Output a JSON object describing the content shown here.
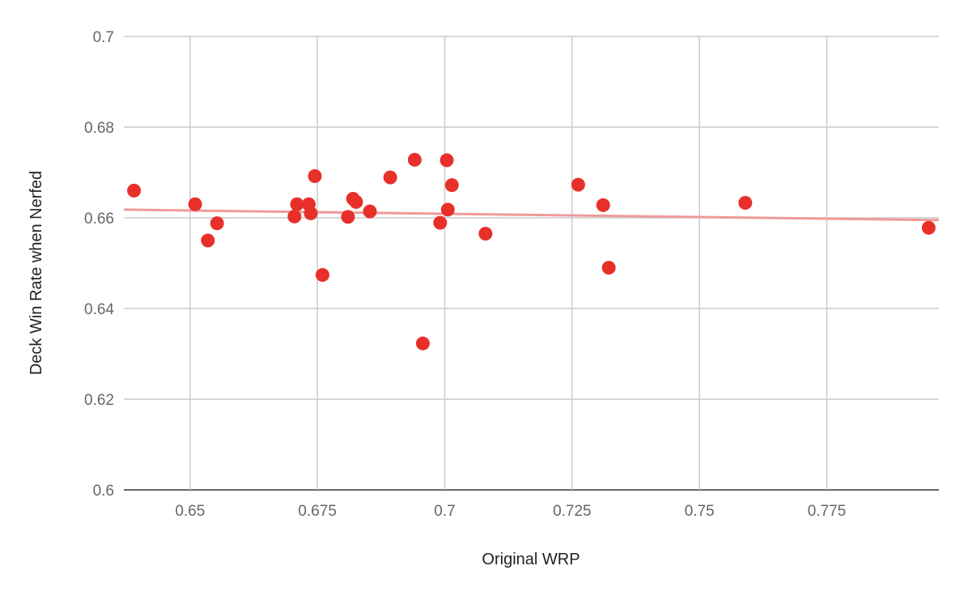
{
  "chart_data": {
    "type": "scatter",
    "title": "",
    "xlabel": "Original WRP",
    "ylabel": "Deck Win Rate when Nerfed",
    "xlim": [
      0.637,
      0.797
    ],
    "ylim": [
      0.6,
      0.7
    ],
    "x_ticks": [
      0.65,
      0.675,
      0.7,
      0.725,
      0.75,
      0.775
    ],
    "x_tick_labels": [
      "0.65",
      "0.675",
      "0.7",
      "0.725",
      "0.75",
      "0.775"
    ],
    "y_ticks": [
      0.6,
      0.62,
      0.64,
      0.66,
      0.68,
      0.7
    ],
    "y_tick_labels": [
      "0.6",
      "0.62",
      "0.64",
      "0.66",
      "0.68",
      "0.7"
    ],
    "grid": true,
    "legend": "none",
    "colors": {
      "points": "#e8302a",
      "trendline": "#ef9a9a",
      "grid": "#cccccc",
      "axis": "#333333",
      "tick_text": "#666666",
      "title_text": "#222222"
    },
    "series": [
      {
        "points": [
          [
            0.639,
            0.666
          ],
          [
            0.651,
            0.663
          ],
          [
            0.6535,
            0.655
          ],
          [
            0.6553,
            0.6588
          ],
          [
            0.6705,
            0.6603
          ],
          [
            0.671,
            0.663
          ],
          [
            0.6733,
            0.663
          ],
          [
            0.6737,
            0.661
          ],
          [
            0.6745,
            0.6692
          ],
          [
            0.676,
            0.6474
          ],
          [
            0.681,
            0.6602
          ],
          [
            0.682,
            0.6642
          ],
          [
            0.6826,
            0.6635
          ],
          [
            0.6853,
            0.6614
          ],
          [
            0.6893,
            0.6689
          ],
          [
            0.6941,
            0.6728
          ],
          [
            0.6957,
            0.6323
          ],
          [
            0.6991,
            0.6589
          ],
          [
            0.7004,
            0.6727
          ],
          [
            0.7006,
            0.6618
          ],
          [
            0.7014,
            0.6672
          ],
          [
            0.708,
            0.6565
          ],
          [
            0.7262,
            0.6673
          ],
          [
            0.7311,
            0.6628
          ],
          [
            0.7322,
            0.649
          ],
          [
            0.759,
            0.6633
          ],
          [
            0.795,
            0.6578
          ]
        ]
      }
    ],
    "trendline": {
      "x": [
        0.637,
        0.797
      ],
      "y": [
        0.6618,
        0.6595
      ]
    }
  }
}
